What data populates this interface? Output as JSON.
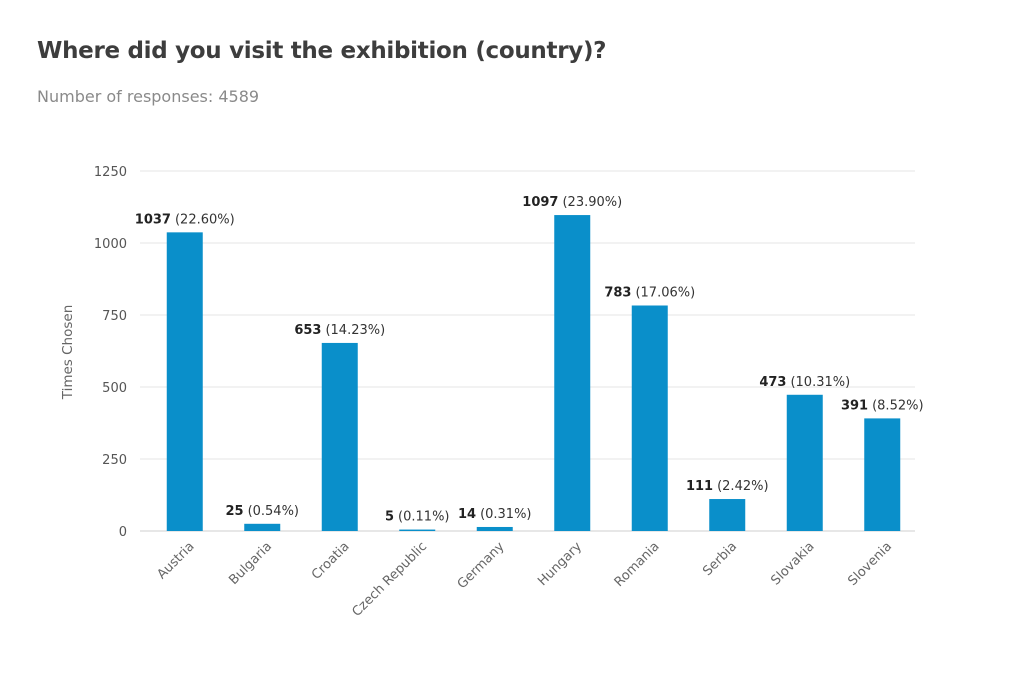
{
  "header": {
    "title": "Where did you visit the exhibition (country)?",
    "subtitle": "Number of responses: 4589"
  },
  "chart_data": {
    "type": "bar",
    "ylabel": "Times Chosen",
    "ylim": [
      0,
      1250
    ],
    "yticks": [
      0,
      250,
      500,
      750,
      1000,
      1250
    ],
    "grid": true,
    "color": "#0a8fca",
    "categories": [
      "Austria",
      "Bulgaria",
      "Croatia",
      "Czech Republic",
      "Germany",
      "Hungary",
      "Romania",
      "Serbia",
      "Slovakia",
      "Slovenia"
    ],
    "values": [
      1037,
      25,
      653,
      5,
      14,
      1097,
      783,
      111,
      473,
      391
    ],
    "percent_labels": [
      "(22.60%)",
      "(0.54%)",
      "(14.23%)",
      "(0.11%)",
      "(0.31%)",
      "(23.90%)",
      "(17.06%)",
      "(2.42%)",
      "(10.31%)",
      "(8.52%)"
    ]
  }
}
